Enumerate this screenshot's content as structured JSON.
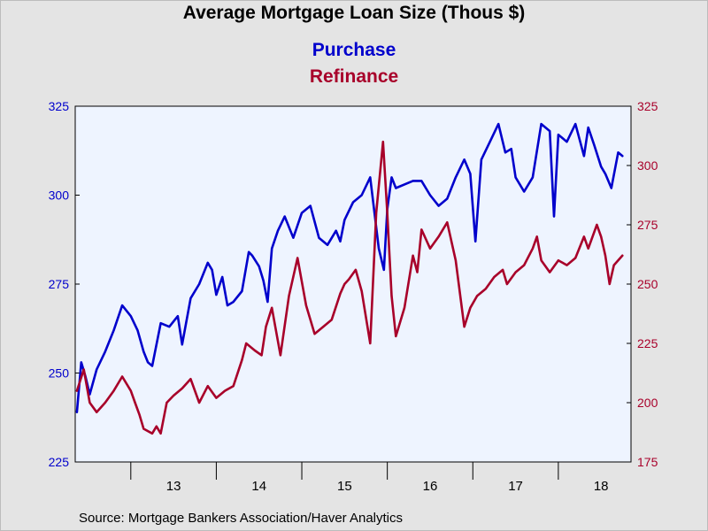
{
  "chart_data": {
    "type": "line",
    "title": "Average Mortgage Loan Size (Thous $)",
    "source": "Source:  Mortgage Bankers Association/Haver Analytics",
    "x_range": [
      2012.35,
      2018.85
    ],
    "x_ticks": [
      "13",
      "14",
      "15",
      "16",
      "17",
      "18"
    ],
    "grid": false,
    "legend_position": "top-center",
    "axes": {
      "left": {
        "range": [
          225,
          325
        ],
        "ticks": [
          "225",
          "250",
          "275",
          "300",
          "325"
        ],
        "color": "#0000cc"
      },
      "right": {
        "range": [
          175,
          325
        ],
        "ticks": [
          "175",
          "200",
          "225",
          "250",
          "275",
          "300",
          "325"
        ],
        "color": "#a8002a"
      }
    },
    "series": [
      {
        "name": "Purchase",
        "axis": "left",
        "color": "#0000cc",
        "x": [
          2012.37,
          2012.42,
          2012.47,
          2012.52,
          2012.6,
          2012.7,
          2012.8,
          2012.9,
          2013.0,
          2013.08,
          2013.15,
          2013.2,
          2013.25,
          2013.35,
          2013.45,
          2013.55,
          2013.6,
          2013.7,
          2013.8,
          2013.9,
          2013.95,
          2014.0,
          2014.07,
          2014.13,
          2014.2,
          2014.3,
          2014.38,
          2014.42,
          2014.5,
          2014.55,
          2014.6,
          2014.65,
          2014.72,
          2014.8,
          2014.9,
          2015.0,
          2015.1,
          2015.2,
          2015.3,
          2015.4,
          2015.45,
          2015.5,
          2015.6,
          2015.7,
          2015.8,
          2015.9,
          2015.96,
          2016.0,
          2016.05,
          2016.1,
          2016.2,
          2016.3,
          2016.4,
          2016.5,
          2016.6,
          2016.7,
          2016.8,
          2016.9,
          2016.97,
          2017.03,
          2017.1,
          2017.2,
          2017.3,
          2017.38,
          2017.45,
          2017.5,
          2017.55,
          2017.6,
          2017.7,
          2017.8,
          2017.9,
          2017.95,
          2018.0,
          2018.1,
          2018.2,
          2018.3,
          2018.35,
          2018.42,
          2018.5,
          2018.55,
          2018.62,
          2018.7,
          2018.75
        ],
        "y": [
          239,
          253,
          249,
          244,
          251,
          256,
          262,
          269,
          266,
          262,
          256,
          253,
          252,
          264,
          263,
          266,
          258,
          271,
          275,
          281,
          279,
          272,
          277,
          269,
          270,
          273,
          284,
          283,
          280,
          276,
          270,
          285,
          290,
          294,
          288,
          295,
          297,
          288,
          286,
          290,
          287,
          293,
          298,
          300,
          305,
          285,
          279,
          296,
          305,
          302,
          303,
          304,
          304,
          300,
          297,
          299,
          305,
          310,
          306,
          287,
          310,
          315,
          320,
          312,
          313,
          305,
          303,
          301,
          305,
          320,
          318,
          294,
          317,
          315,
          320,
          311,
          319,
          314,
          308,
          306,
          302,
          312,
          311
        ]
      },
      {
        "name": "Refinance",
        "axis": "right",
        "color": "#a8002a",
        "x": [
          2012.37,
          2012.45,
          2012.52,
          2012.6,
          2012.7,
          2012.8,
          2012.9,
          2013.0,
          2013.05,
          2013.1,
          2013.15,
          2013.25,
          2013.3,
          2013.35,
          2013.42,
          2013.5,
          2013.6,
          2013.7,
          2013.8,
          2013.9,
          2014.0,
          2014.1,
          2014.2,
          2014.3,
          2014.35,
          2014.45,
          2014.53,
          2014.58,
          2014.65,
          2014.75,
          2014.85,
          2014.95,
          2015.05,
          2015.15,
          2015.25,
          2015.35,
          2015.45,
          2015.5,
          2015.55,
          2015.63,
          2015.7,
          2015.8,
          2015.87,
          2015.95,
          2016.0,
          2016.05,
          2016.1,
          2016.2,
          2016.3,
          2016.35,
          2016.4,
          2016.5,
          2016.6,
          2016.7,
          2016.8,
          2016.9,
          2016.97,
          2017.05,
          2017.15,
          2017.25,
          2017.35,
          2017.4,
          2017.5,
          2017.6,
          2017.7,
          2017.75,
          2017.8,
          2017.9,
          2018.0,
          2018.1,
          2018.2,
          2018.3,
          2018.35,
          2018.45,
          2018.5,
          2018.55,
          2018.6,
          2018.65,
          2018.75
        ],
        "y": [
          205,
          214,
          200,
          196,
          200,
          205,
          211,
          205,
          200,
          195,
          189,
          187,
          190,
          187,
          200,
          203,
          206,
          210,
          200,
          207,
          202,
          205,
          207,
          218,
          225,
          222,
          220,
          232,
          240,
          220,
          245,
          261,
          241,
          229,
          232,
          235,
          246,
          250,
          252,
          256,
          247,
          225,
          280,
          310,
          280,
          245,
          228,
          240,
          262,
          255,
          273,
          265,
          270,
          276,
          260,
          232,
          240,
          245,
          248,
          253,
          256,
          250,
          255,
          258,
          265,
          270,
          260,
          255,
          260,
          258,
          261,
          270,
          265,
          275,
          270,
          262,
          250,
          258,
          262
        ]
      }
    ]
  }
}
